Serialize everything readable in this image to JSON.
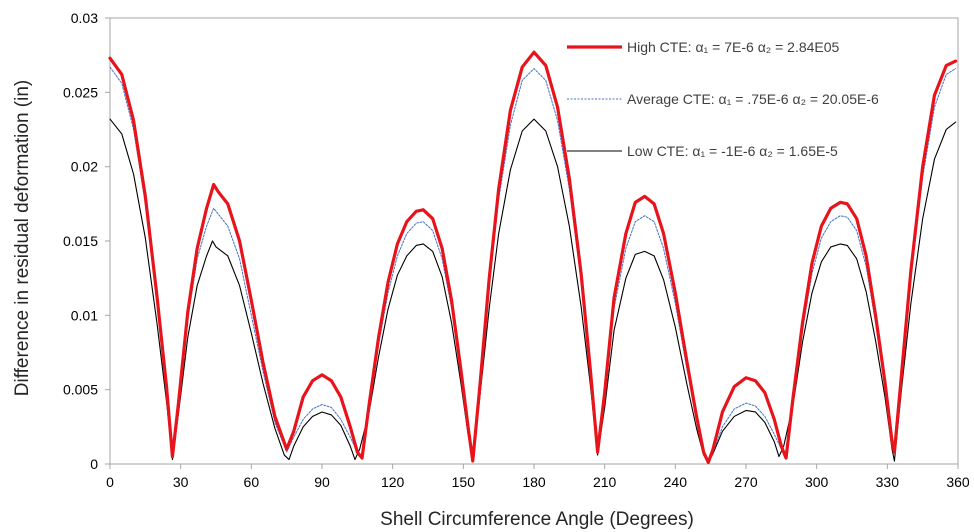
{
  "chart_data": {
    "type": "line",
    "title": "",
    "xlabel": "Shell Circumference Angle (Degrees)",
    "ylabel": "Difference in residual deformation (in)",
    "xlim": [
      0,
      360
    ],
    "ylim": [
      0,
      0.03
    ],
    "x_ticks": [
      "0",
      "30",
      "60",
      "90",
      "120",
      "150",
      "180",
      "210",
      "240",
      "270",
      "300",
      "330",
      "360"
    ],
    "y_ticks": [
      "0",
      "0.005",
      "0.01",
      "0.015",
      "0.02",
      "0.025",
      "0.03"
    ],
    "grid": false,
    "legend_position": "top-right",
    "series": [
      {
        "name": "High CTE: α₁ =  7E-6 α₂ = 2.84E05",
        "color": "#e8141c",
        "style": "solid-thick",
        "points": [
          [
            0,
            0.0273
          ],
          [
            5,
            0.0262
          ],
          [
            10,
            0.0231
          ],
          [
            15,
            0.018
          ],
          [
            20,
            0.0112
          ],
          [
            24,
            0.0052
          ],
          [
            26.5,
            0.0005
          ],
          [
            29,
            0.004
          ],
          [
            33,
            0.0102
          ],
          [
            37,
            0.0145
          ],
          [
            41,
            0.0172
          ],
          [
            44,
            0.0188
          ],
          [
            46,
            0.0183
          ],
          [
            50,
            0.0175
          ],
          [
            55,
            0.015
          ],
          [
            60,
            0.011
          ],
          [
            65,
            0.0068
          ],
          [
            70,
            0.0032
          ],
          [
            75,
            0.001
          ],
          [
            78,
            0.0022
          ],
          [
            82,
            0.0045
          ],
          [
            86,
            0.0056
          ],
          [
            90,
            0.006
          ],
          [
            94,
            0.0056
          ],
          [
            98,
            0.0045
          ],
          [
            102,
            0.0025
          ],
          [
            105,
            0.0008
          ],
          [
            107,
            0.0004
          ],
          [
            110,
            0.004
          ],
          [
            114,
            0.0085
          ],
          [
            118,
            0.0122
          ],
          [
            122,
            0.0148
          ],
          [
            126,
            0.0163
          ],
          [
            130,
            0.017
          ],
          [
            133,
            0.0171
          ],
          [
            137,
            0.0165
          ],
          [
            141,
            0.0145
          ],
          [
            145,
            0.011
          ],
          [
            149,
            0.0063
          ],
          [
            152,
            0.0025
          ],
          [
            154,
            0.0002
          ],
          [
            157,
            0.0052
          ],
          [
            161,
            0.0125
          ],
          [
            165,
            0.0185
          ],
          [
            170,
            0.0238
          ],
          [
            175,
            0.0267
          ],
          [
            180,
            0.0277
          ],
          [
            185,
            0.0268
          ],
          [
            190,
            0.024
          ],
          [
            195,
            0.0192
          ],
          [
            200,
            0.0128
          ],
          [
            204,
            0.0062
          ],
          [
            207,
            0.0008
          ],
          [
            210,
            0.0048
          ],
          [
            214,
            0.0112
          ],
          [
            219,
            0.0155
          ],
          [
            223,
            0.0176
          ],
          [
            227,
            0.018
          ],
          [
            231,
            0.0175
          ],
          [
            235,
            0.0155
          ],
          [
            240,
            0.0115
          ],
          [
            245,
            0.0068
          ],
          [
            249,
            0.0032
          ],
          [
            252,
            0.0008
          ],
          [
            254,
            0.0001
          ],
          [
            256,
            0.001
          ],
          [
            260,
            0.0035
          ],
          [
            265,
            0.0052
          ],
          [
            270,
            0.0058
          ],
          [
            274,
            0.0056
          ],
          [
            278,
            0.0048
          ],
          [
            282,
            0.003
          ],
          [
            285,
            0.0012
          ],
          [
            287,
            0.0004
          ],
          [
            290,
            0.0045
          ],
          [
            294,
            0.0095
          ],
          [
            298,
            0.0135
          ],
          [
            302,
            0.016
          ],
          [
            306,
            0.0172
          ],
          [
            310,
            0.0176
          ],
          [
            313,
            0.0175
          ],
          [
            317,
            0.0165
          ],
          [
            321,
            0.014
          ],
          [
            325,
            0.01
          ],
          [
            329,
            0.0055
          ],
          [
            332,
            0.0015
          ],
          [
            333,
            0.0008
          ],
          [
            336,
            0.006
          ],
          [
            340,
            0.013
          ],
          [
            345,
            0.02
          ],
          [
            350,
            0.0248
          ],
          [
            355,
            0.0268
          ],
          [
            359,
            0.0271
          ]
        ]
      },
      {
        "name": "Average CTE: α₁ =  .75E-6  α₂ = 20.05E-6",
        "color": "#4472c4",
        "style": "dotted",
        "points": [
          [
            0,
            0.0267
          ],
          [
            5,
            0.0256
          ],
          [
            10,
            0.0225
          ],
          [
            15,
            0.0175
          ],
          [
            20,
            0.0108
          ],
          [
            24,
            0.005
          ],
          [
            26.5,
            0.0005
          ],
          [
            29,
            0.0038
          ],
          [
            33,
            0.0097
          ],
          [
            37,
            0.0138
          ],
          [
            41,
            0.016
          ],
          [
            44,
            0.0172
          ],
          [
            46,
            0.0168
          ],
          [
            50,
            0.016
          ],
          [
            55,
            0.0138
          ],
          [
            60,
            0.01
          ],
          [
            65,
            0.0062
          ],
          [
            70,
            0.0028
          ],
          [
            75,
            0.0008
          ],
          [
            78,
            0.0018
          ],
          [
            82,
            0.003
          ],
          [
            86,
            0.0037
          ],
          [
            90,
            0.004
          ],
          [
            94,
            0.0038
          ],
          [
            98,
            0.003
          ],
          [
            102,
            0.0018
          ],
          [
            105,
            0.0008
          ],
          [
            107,
            0.0004
          ],
          [
            110,
            0.0037
          ],
          [
            114,
            0.008
          ],
          [
            118,
            0.0115
          ],
          [
            122,
            0.014
          ],
          [
            126,
            0.0155
          ],
          [
            130,
            0.0162
          ],
          [
            133,
            0.0163
          ],
          [
            137,
            0.0157
          ],
          [
            141,
            0.0138
          ],
          [
            145,
            0.0105
          ],
          [
            149,
            0.006
          ],
          [
            152,
            0.0024
          ],
          [
            154,
            0.0002
          ],
          [
            157,
            0.005
          ],
          [
            161,
            0.012
          ],
          [
            165,
            0.0178
          ],
          [
            170,
            0.0228
          ],
          [
            175,
            0.0258
          ],
          [
            180,
            0.0266
          ],
          [
            185,
            0.0258
          ],
          [
            190,
            0.0231
          ],
          [
            195,
            0.0185
          ],
          [
            200,
            0.0123
          ],
          [
            204,
            0.006
          ],
          [
            207,
            0.0008
          ],
          [
            210,
            0.0045
          ],
          [
            214,
            0.0105
          ],
          [
            219,
            0.0145
          ],
          [
            223,
            0.0163
          ],
          [
            227,
            0.0167
          ],
          [
            231,
            0.0163
          ],
          [
            235,
            0.0145
          ],
          [
            240,
            0.0108
          ],
          [
            245,
            0.0063
          ],
          [
            249,
            0.003
          ],
          [
            252,
            0.0008
          ],
          [
            254,
            0.0001
          ],
          [
            256,
            0.0008
          ],
          [
            260,
            0.0025
          ],
          [
            265,
            0.0037
          ],
          [
            270,
            0.0041
          ],
          [
            274,
            0.0039
          ],
          [
            278,
            0.0032
          ],
          [
            282,
            0.002
          ],
          [
            285,
            0.001
          ],
          [
            287,
            0.0004
          ],
          [
            290,
            0.0042
          ],
          [
            294,
            0.009
          ],
          [
            298,
            0.0128
          ],
          [
            302,
            0.0152
          ],
          [
            306,
            0.0163
          ],
          [
            310,
            0.0167
          ],
          [
            313,
            0.0166
          ],
          [
            317,
            0.0157
          ],
          [
            321,
            0.0133
          ],
          [
            325,
            0.0095
          ],
          [
            329,
            0.0052
          ],
          [
            332,
            0.0014
          ],
          [
            333,
            0.0008
          ],
          [
            336,
            0.0058
          ],
          [
            340,
            0.0125
          ],
          [
            345,
            0.0193
          ],
          [
            350,
            0.024
          ],
          [
            355,
            0.0262
          ],
          [
            359,
            0.0266
          ]
        ]
      },
      {
        "name": "Low CTE: α₁ =  -1E-6  α₂ = 1.65E-5",
        "color": "#000000",
        "style": "solid-thin",
        "points": [
          [
            0,
            0.0232
          ],
          [
            5,
            0.0222
          ],
          [
            10,
            0.0195
          ],
          [
            15,
            0.0152
          ],
          [
            20,
            0.0094
          ],
          [
            24,
            0.0042
          ],
          [
            26.5,
            0.0003
          ],
          [
            29,
            0.0033
          ],
          [
            33,
            0.0085
          ],
          [
            37,
            0.012
          ],
          [
            41,
            0.014
          ],
          [
            43.5,
            0.015
          ],
          [
            45,
            0.0146
          ],
          [
            50,
            0.014
          ],
          [
            55,
            0.012
          ],
          [
            60,
            0.0088
          ],
          [
            65,
            0.0054
          ],
          [
            70,
            0.0024
          ],
          [
            74,
            0.0006
          ],
          [
            76,
            0.0003
          ],
          [
            78,
            0.0012
          ],
          [
            82,
            0.0025
          ],
          [
            86,
            0.0032
          ],
          [
            90,
            0.0035
          ],
          [
            94,
            0.0033
          ],
          [
            98,
            0.0026
          ],
          [
            102,
            0.0012
          ],
          [
            104,
            0.0003
          ],
          [
            106,
            0.001
          ],
          [
            110,
            0.0035
          ],
          [
            114,
            0.0072
          ],
          [
            118,
            0.0104
          ],
          [
            122,
            0.0127
          ],
          [
            126,
            0.014
          ],
          [
            130,
            0.0147
          ],
          [
            133,
            0.0148
          ],
          [
            137,
            0.0143
          ],
          [
            141,
            0.0126
          ],
          [
            145,
            0.0095
          ],
          [
            149,
            0.0054
          ],
          [
            152,
            0.002
          ],
          [
            154,
            0.0002
          ],
          [
            157,
            0.0045
          ],
          [
            161,
            0.0105
          ],
          [
            165,
            0.0155
          ],
          [
            170,
            0.0198
          ],
          [
            175,
            0.0224
          ],
          [
            180,
            0.0232
          ],
          [
            185,
            0.0224
          ],
          [
            190,
            0.02
          ],
          [
            195,
            0.016
          ],
          [
            200,
            0.0106
          ],
          [
            204,
            0.0052
          ],
          [
            207,
            0.0006
          ],
          [
            210,
            0.0038
          ],
          [
            214,
            0.009
          ],
          [
            219,
            0.0125
          ],
          [
            223,
            0.0141
          ],
          [
            227,
            0.0143
          ],
          [
            231,
            0.014
          ],
          [
            235,
            0.0124
          ],
          [
            240,
            0.0092
          ],
          [
            245,
            0.0053
          ],
          [
            249,
            0.0024
          ],
          [
            252,
            0.0006
          ],
          [
            254,
            0.0001
          ],
          [
            256,
            0.0007
          ],
          [
            260,
            0.0022
          ],
          [
            265,
            0.0032
          ],
          [
            270,
            0.0036
          ],
          [
            274,
            0.0035
          ],
          [
            278,
            0.0028
          ],
          [
            282,
            0.0015
          ],
          [
            284,
            0.0005
          ],
          [
            286,
            0.0012
          ],
          [
            290,
            0.004
          ],
          [
            294,
            0.0082
          ],
          [
            298,
            0.0115
          ],
          [
            302,
            0.0136
          ],
          [
            306,
            0.0146
          ],
          [
            310,
            0.0148
          ],
          [
            313,
            0.0147
          ],
          [
            317,
            0.0138
          ],
          [
            321,
            0.0116
          ],
          [
            325,
            0.0083
          ],
          [
            329,
            0.0045
          ],
          [
            332,
            0.001
          ],
          [
            333,
            0.0002
          ],
          [
            336,
            0.005
          ],
          [
            340,
            0.0108
          ],
          [
            345,
            0.0165
          ],
          [
            350,
            0.0205
          ],
          [
            355,
            0.0225
          ],
          [
            359,
            0.023
          ]
        ]
      }
    ]
  }
}
